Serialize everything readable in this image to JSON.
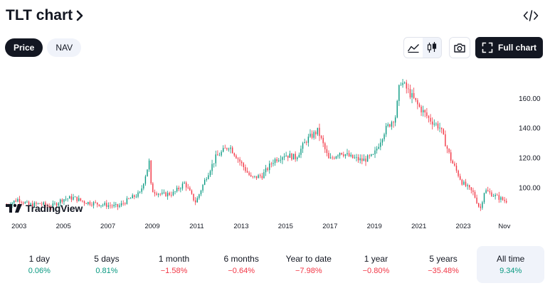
{
  "header": {
    "title": "TLT chart"
  },
  "tabs": [
    {
      "label": "Price",
      "active": true
    },
    {
      "label": "NAV",
      "active": false
    }
  ],
  "toolbar": {
    "full_chart_label": "Full chart"
  },
  "branding": {
    "logo_text": "TradingView"
  },
  "colors": {
    "up": "#089981",
    "down": "#f23645",
    "dark": "#131722"
  },
  "icons": [
    "chevron-right-icon",
    "embed-code-icon",
    "area-chart-icon",
    "candlestick-icon",
    "camera-icon",
    "fullscreen-icon"
  ],
  "chart_data": {
    "type": "candlestick",
    "title": "",
    "xlabel": "",
    "ylabel": "",
    "x_ticks": [
      "2003",
      "2005",
      "2007",
      "2009",
      "2011",
      "2013",
      "2015",
      "2017",
      "2019",
      "2021",
      "2023",
      "Nov"
    ],
    "y_ticks": [
      "100.00",
      "120.00",
      "140.00",
      "160.00"
    ],
    "ylim": [
      82,
      180
    ],
    "series": [
      {
        "name": "",
        "x": [
          2002.5,
          2003.0,
          2003.5,
          2004.0,
          2004.5,
          2005.0,
          2005.5,
          2006.0,
          2006.5,
          2007.0,
          2007.5,
          2008.0,
          2008.5,
          2008.9,
          2009.0,
          2009.5,
          2010.0,
          2010.5,
          2010.9,
          2011.0,
          2011.5,
          2011.9,
          2012.5,
          2013.0,
          2013.5,
          2014.0,
          2014.5,
          2015.0,
          2015.5,
          2016.0,
          2016.5,
          2017.0,
          2017.5,
          2018.0,
          2018.5,
          2019.0,
          2019.5,
          2020.0,
          2020.2,
          2020.5,
          2021.0,
          2021.5,
          2022.0,
          2022.5,
          2023.0,
          2023.5,
          2023.8,
          2024.0,
          2024.5,
          2024.9
        ],
        "close": [
          88,
          92,
          88,
          89,
          87,
          92,
          93,
          90,
          89,
          88,
          87,
          92,
          96,
          117,
          98,
          95,
          96,
          103,
          92,
          90,
          108,
          120,
          128,
          117,
          106,
          108,
          118,
          122,
          120,
          132,
          138,
          118,
          124,
          120,
          118,
          121,
          138,
          148,
          172,
          166,
          155,
          146,
          140,
          118,
          103,
          96,
          85,
          98,
          94,
          91
        ]
      }
    ]
  },
  "periods": [
    {
      "label": "1 day",
      "value": "0.06%",
      "direction": "up"
    },
    {
      "label": "5 days",
      "value": "0.81%",
      "direction": "up"
    },
    {
      "label": "1 month",
      "value": "−1.58%",
      "direction": "down"
    },
    {
      "label": "6 months",
      "value": "−0.64%",
      "direction": "down"
    },
    {
      "label": "Year to date",
      "value": "−7.98%",
      "direction": "down"
    },
    {
      "label": "1 year",
      "value": "−0.80%",
      "direction": "down"
    },
    {
      "label": "5 years",
      "value": "−35.48%",
      "direction": "down"
    },
    {
      "label": "All time",
      "value": "9.34%",
      "direction": "up",
      "selected": true
    }
  ]
}
